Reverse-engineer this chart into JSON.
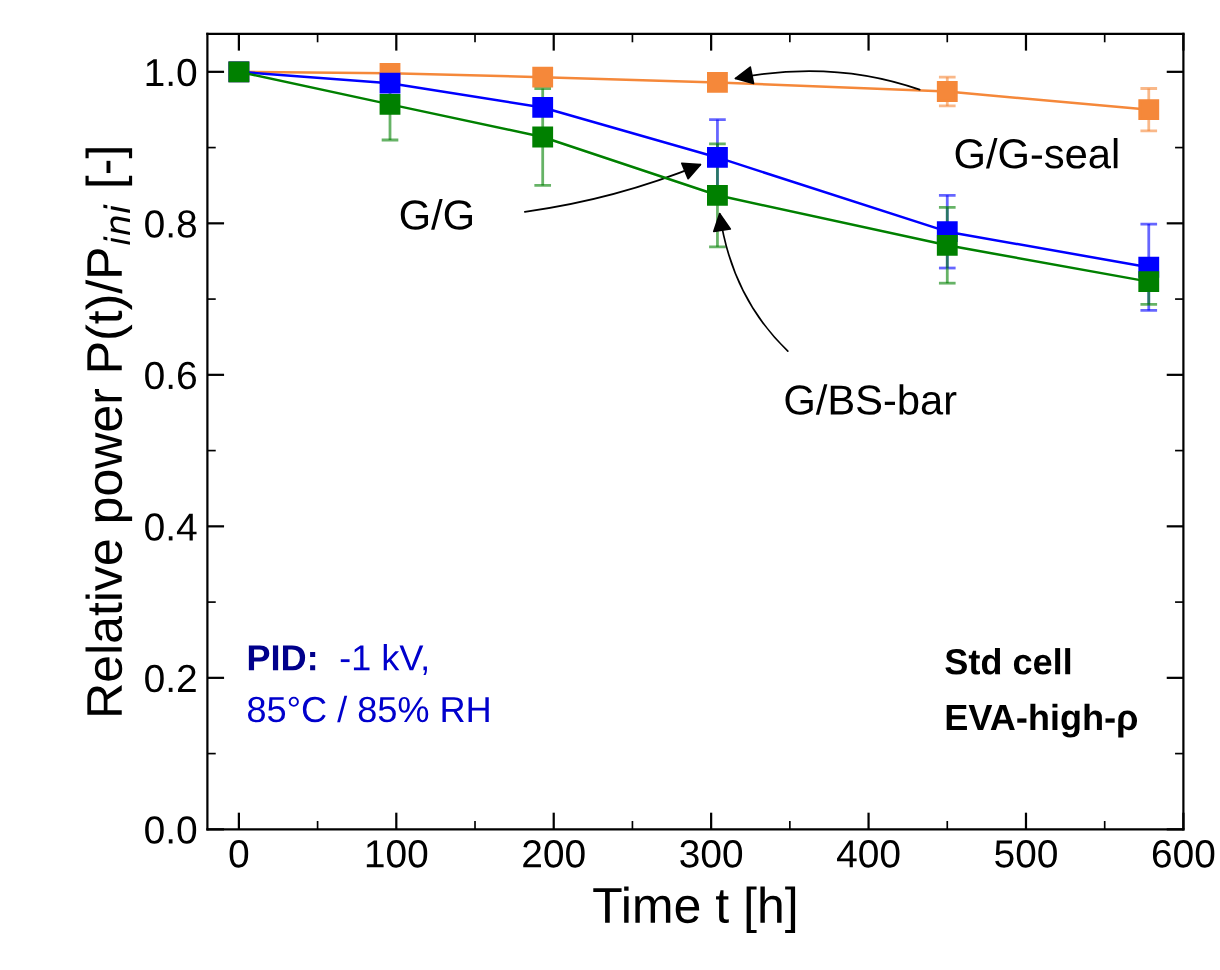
{
  "chart_data": {
    "type": "line",
    "xlabel": "Time t [h]",
    "ylabel": "Relative power P(t)/P$_{ini}$ [-]",
    "x": [
      0,
      96,
      193,
      304,
      450,
      578
    ],
    "series": [
      {
        "name": "G/G-seal",
        "color": "#f5883a",
        "values": [
          1.0,
          0.998,
          0.993,
          0.986,
          0.974,
          0.95
        ],
        "errors": [
          null,
          null,
          null,
          null,
          0.019,
          0.028
        ]
      },
      {
        "name": "G/G",
        "color": "#0000ff",
        "values": [
          1.0,
          0.985,
          0.953,
          0.887,
          0.789,
          0.742
        ],
        "errors": [
          null,
          0.01,
          0.01,
          0.05,
          0.048,
          0.057
        ]
      },
      {
        "name": "G/BS-bar",
        "color": "#008000",
        "values": [
          1.0,
          0.957,
          0.914,
          0.837,
          0.771,
          0.723
        ],
        "errors": [
          null,
          0.047,
          0.064,
          0.068,
          0.05,
          0.03
        ]
      }
    ],
    "annotations": [
      "PID:",
      "-1 kV,",
      "85°C / 85% RH",
      "Std cell",
      "EVA-high-ρ"
    ],
    "xlim": [
      -20,
      600
    ],
    "xticks": [
      0,
      100,
      200,
      300,
      400,
      500,
      600
    ],
    "ylim": [
      0.0,
      1.05
    ],
    "yticks": [
      {
        "value": 0,
        "label": "0.0"
      },
      0.2,
      0.4,
      0.6,
      0.8,
      {
        "value": 1,
        "label": "1.0"
      }
    ],
    "marker": "square",
    "line_style": "solid",
    "grid": false,
    "legend": false
  }
}
